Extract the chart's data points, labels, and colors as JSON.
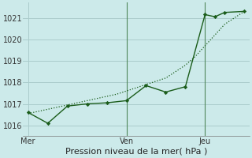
{
  "xlabel": "Pression niveau de la mer( hPa )",
  "bg_color": "#cceaea",
  "grid_color": "#aacccc",
  "line_color": "#1a5c1a",
  "ylim": [
    1015.5,
    1021.7
  ],
  "yticks": [
    1016,
    1017,
    1018,
    1019,
    1020,
    1021
  ],
  "day_labels": [
    "Mer",
    "Ven",
    "Jeu"
  ],
  "day_positions": [
    0,
    10,
    18
  ],
  "xlim": [
    -0.5,
    22.5
  ],
  "line1_x": [
    0,
    1,
    2,
    3,
    4,
    5,
    6,
    7,
    8,
    9,
    10,
    11,
    12,
    13,
    14,
    15,
    16,
    17,
    18,
    19,
    20,
    21,
    22
  ],
  "line1_y": [
    1016.55,
    1016.65,
    1016.75,
    1016.85,
    1016.95,
    1017.05,
    1017.15,
    1017.25,
    1017.35,
    1017.45,
    1017.6,
    1017.75,
    1017.9,
    1018.05,
    1018.2,
    1018.5,
    1018.8,
    1019.2,
    1019.7,
    1020.2,
    1020.7,
    1021.0,
    1021.3
  ],
  "line2_x": [
    0,
    2,
    4,
    6,
    8,
    10,
    12,
    14,
    16,
    18,
    19,
    20,
    22
  ],
  "line2_y": [
    1016.6,
    1016.1,
    1016.9,
    1017.0,
    1017.05,
    1017.15,
    1017.85,
    1017.55,
    1017.8,
    1021.15,
    1021.05,
    1021.25,
    1021.3
  ],
  "vline_positions": [
    10,
    18
  ],
  "font_size_label": 8,
  "font_size_tick": 7
}
